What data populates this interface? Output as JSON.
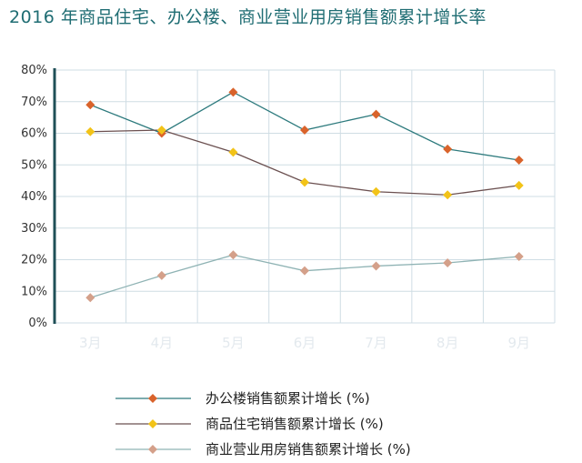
{
  "chart_data": {
    "type": "line",
    "title": "2016 年商品住宅、办公楼、商业营业用房销售额累计增长率",
    "xlabel": "",
    "ylabel": "",
    "categories": [
      "3月",
      "4月",
      "5月",
      "6月",
      "7月",
      "8月",
      "9月"
    ],
    "ylim": [
      0,
      80
    ],
    "yticks": [
      "0%",
      "10%",
      "20%",
      "30%",
      "40%",
      "50%",
      "60%",
      "70%",
      "80%"
    ],
    "grid": true,
    "legend_position": "bottom",
    "series": [
      {
        "name": "办公楼销售额累计增长 (%)",
        "values": [
          69,
          60,
          73,
          61,
          66,
          55,
          51.5
        ],
        "color": "#2d7a7d",
        "marker_color": "#d9632b"
      },
      {
        "name": "商品住宅销售额累计增长 (%)",
        "values": [
          60.5,
          61,
          54,
          44.5,
          41.5,
          40.5,
          43.5
        ],
        "color": "#6b5050",
        "marker_color": "#f2c318"
      },
      {
        "name": "商业营业用房销售额累计增长 (%)",
        "values": [
          8,
          15,
          21.5,
          16.5,
          18,
          19,
          21
        ],
        "color": "#8fb3b4",
        "marker_color": "#d4a08a"
      }
    ]
  }
}
